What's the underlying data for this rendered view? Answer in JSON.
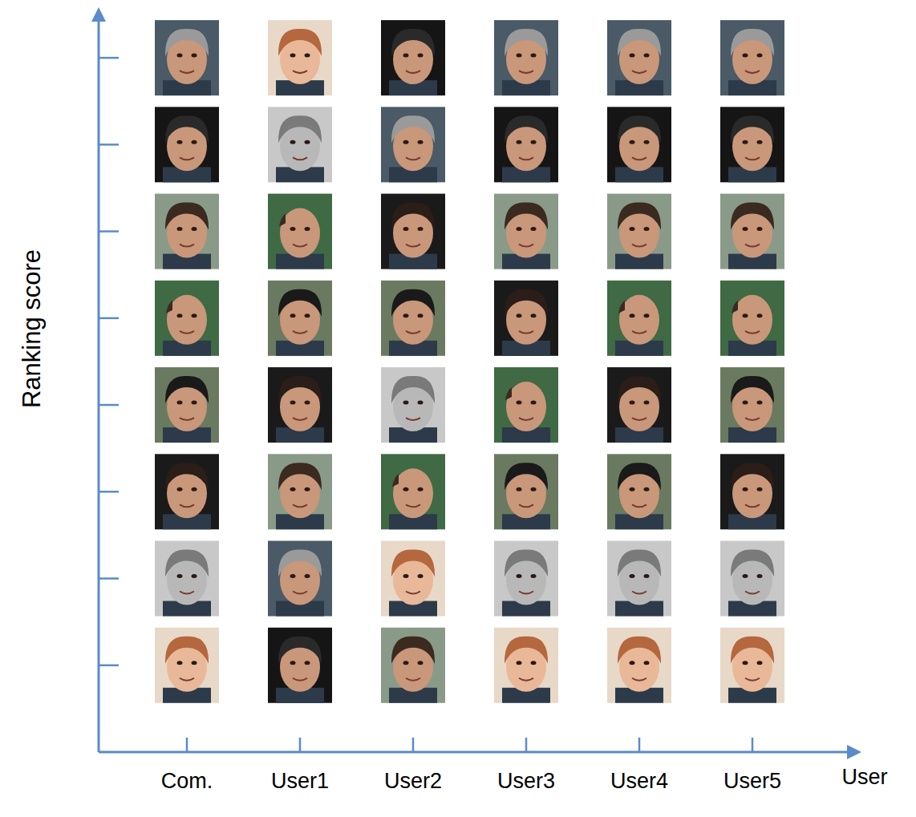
{
  "chart_data": {
    "type": "ranking",
    "xlabel": "User",
    "ylabel": "Ranking score",
    "color": "#5b8bc9",
    "tick_labels": "x",
    "ylim": [
      0,
      8.5
    ],
    "yticks": [
      1,
      2,
      3,
      4,
      5,
      6,
      7,
      8
    ],
    "categories": [
      null,
      null,
      null,
      null,
      null,
      null,
      null,
      null
    ],
    "colors": [
      "#9a9a9a",
      "#2a2a2a",
      "#3b2a20",
      "#c08a6a",
      "#1a1a1a",
      "#2b1d18",
      "#7a7a7a",
      "#b5673e"
    ],
    "series": [
      {
        "name": "Com.",
        "values": [
          8,
          7,
          6,
          5,
          4,
          3,
          2,
          1
        ]
      },
      {
        "name": "User1",
        "values": [
          2,
          1,
          3,
          6,
          5,
          4,
          7,
          8
        ]
      },
      {
        "name": "User2",
        "values": [
          7,
          8,
          1,
          3,
          5,
          6,
          4,
          2
        ]
      },
      {
        "name": "User3",
        "values": [
          8,
          7,
          6,
          4,
          3,
          5,
          2,
          1
        ]
      },
      {
        "name": "User4",
        "values": [
          8,
          7,
          6,
          5,
          3,
          4,
          2,
          1
        ]
      },
      {
        "name": "User5",
        "values": [
          8,
          7,
          6,
          5,
          4,
          3,
          2,
          1
        ]
      }
    ]
  }
}
